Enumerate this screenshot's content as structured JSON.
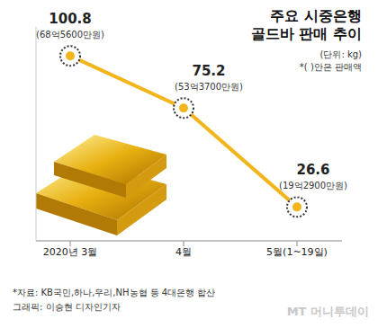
{
  "chart_data": {
    "type": "line",
    "title": "주요 시중은행\n골드바 판매 추이",
    "unit": "(단위: kg)",
    "note": "*( )안은 판매액",
    "categories": [
      "2020년 3월",
      "4월",
      "5월(1~19일)"
    ],
    "values": [
      100.8,
      75.2,
      26.6
    ],
    "sales_labels": [
      "(68억5600만원)",
      "(53억3700만원)",
      "(19억2900만원)"
    ],
    "color": "#f2b51c",
    "marker": "dotted_circle",
    "data_labels": true,
    "tick_labels": "x",
    "grid": false,
    "ylim": [
      10,
      115
    ],
    "source": "*자료: KB국민,하나,우리,NH농협 등 4대은행 합산",
    "credit": "그래픽: 이승현 디자인기자",
    "watermark": "MT 머니투데이"
  }
}
